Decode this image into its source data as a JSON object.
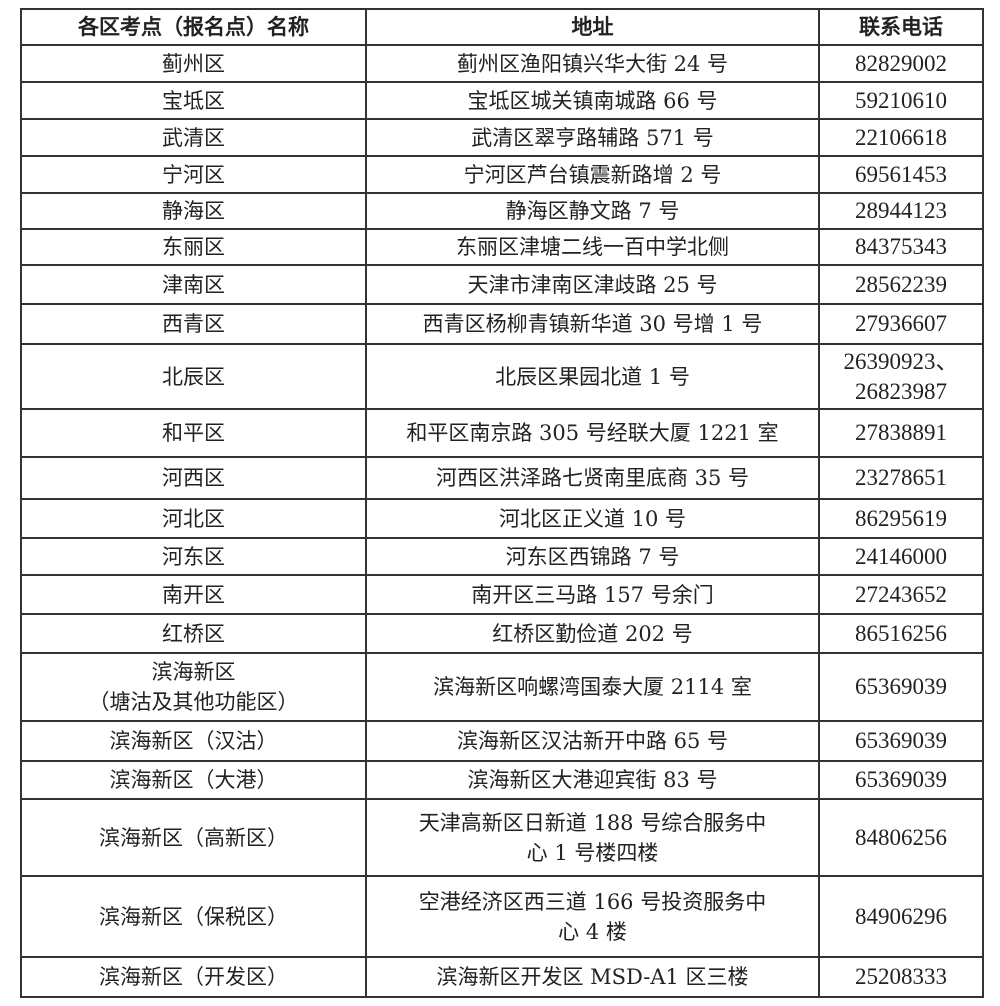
{
  "headers": [
    "各区考点（报名点）名称",
    "地址",
    "联系电话"
  ],
  "rows": [
    {
      "name": "蓟州区",
      "address": "蓟州区渔阳镇兴华大街 24 号",
      "phone": "82829002"
    },
    {
      "name": "宝坻区",
      "address": "宝坻区城关镇南城路 66 号",
      "phone": "59210610"
    },
    {
      "name": "武清区",
      "address": "武清区翠亨路辅路 571 号",
      "phone": "22106618"
    },
    {
      "name": "宁河区",
      "address": "宁河区芦台镇震新路增 2 号",
      "phone": "69561453"
    },
    {
      "name": "静海区",
      "address": "静海区静文路 7 号",
      "phone": "28944123"
    },
    {
      "name": "东丽区",
      "address": "东丽区津塘二线一百中学北侧",
      "phone": "84375343"
    },
    {
      "name": "津南区",
      "address": "天津市津南区津歧路 25 号",
      "phone": "28562239"
    },
    {
      "name": "西青区",
      "address": "西青区杨柳青镇新华道 30 号增 1 号",
      "phone": "27936607"
    },
    {
      "name": "北辰区",
      "address": "北辰区果园北道 1 号",
      "phone": "26390923、\n26823987"
    },
    {
      "name": "和平区",
      "address": "和平区南京路 305 号经联大厦 1221 室",
      "phone": "27838891"
    },
    {
      "name": "河西区",
      "address": "河西区洪泽路七贤南里底商 35 号",
      "phone": "23278651"
    },
    {
      "name": "河北区",
      "address": "河北区正义道 10 号",
      "phone": "86295619"
    },
    {
      "name": "河东区",
      "address": "河东区西锦路 7 号",
      "phone": "24146000"
    },
    {
      "name": "南开区",
      "address": "南开区三马路 157 号余门",
      "phone": "27243652"
    },
    {
      "name": "红桥区",
      "address": "红桥区勤俭道 202 号",
      "phone": "86516256"
    },
    {
      "name": "滨海新区\n（塘沽及其他功能区）",
      "address": "滨海新区响螺湾国泰大厦 2114 室",
      "phone": "65369039"
    },
    {
      "name": "滨海新区（汉沽）",
      "address": "滨海新区汉沽新开中路 65 号",
      "phone": "65369039"
    },
    {
      "name": "滨海新区（大港）",
      "address": "滨海新区大港迎宾街 83 号",
      "phone": "65369039"
    },
    {
      "name": "滨海新区（高新区）",
      "address": "天津高新区日新道 188 号综合服务中\n心 1 号楼四楼",
      "phone": "84806256"
    },
    {
      "name": "滨海新区（保税区）",
      "address": "空港经济区西三道 166 号投资服务中\n心 4 楼",
      "phone": "84906296"
    },
    {
      "name": "滨海新区（开发区）",
      "address": "滨海新区开发区 MSD-A1 区三楼",
      "phone": "25208333"
    }
  ]
}
